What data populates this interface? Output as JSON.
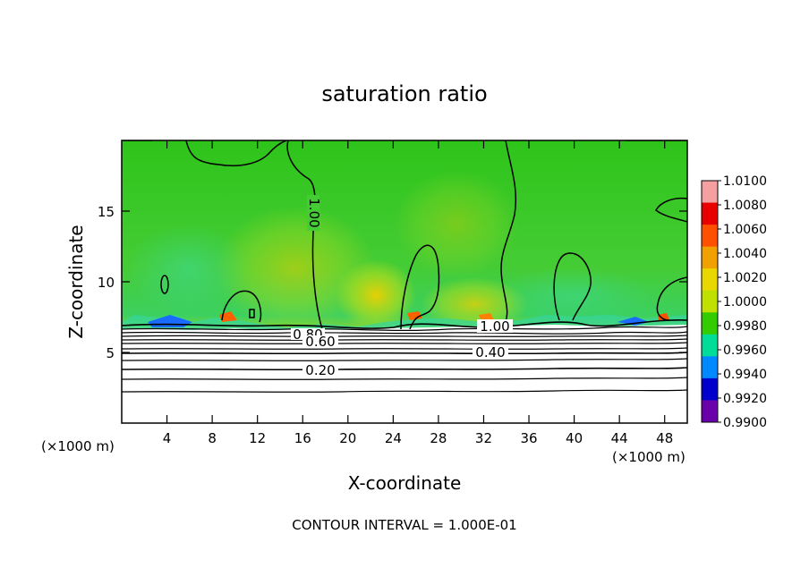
{
  "chart_data": {
    "type": "heatmap",
    "title": "saturation ratio",
    "xlabel": "X-coordinate",
    "ylabel": "Z-coordinate",
    "x_unit_left": "(×1000 m)",
    "x_unit_right": "(×1000 m)",
    "footer": "CONTOUR INTERVAL = 1.000E-01",
    "xlim": [
      0,
      50
    ],
    "ylim": [
      0,
      20
    ],
    "x_ticks": [
      4,
      8,
      12,
      16,
      20,
      24,
      28,
      32,
      36,
      40,
      44,
      48
    ],
    "x_tick_labels": [
      "4",
      "8",
      "12",
      "16",
      "20",
      "24",
      "28",
      "32",
      "36",
      "40",
      "44",
      "48"
    ],
    "y_ticks": [
      5,
      10,
      15
    ],
    "y_tick_labels": [
      "5",
      "10",
      "15"
    ],
    "colorbar": {
      "labels": [
        "1.0100",
        "1.0080",
        "1.0060",
        "1.0040",
        "1.0020",
        "1.0000",
        "0.9980",
        "0.9960",
        "0.9940",
        "0.9920",
        "0.9900"
      ],
      "colors": [
        "#f4a0a0",
        "#e80000",
        "#ff5000",
        "#f0a000",
        "#e8d800",
        "#c0e000",
        "#33cc00",
        "#00dd99",
        "#0088ff",
        "#0000cc",
        "#6a00aa"
      ]
    },
    "contour_labels": [
      {
        "text": "1.00",
        "x": 13.5,
        "z": 14.5,
        "rotate": 90
      },
      {
        "text": "1.00",
        "x": 33.0,
        "z": 6.8
      },
      {
        "text": "0.80",
        "x": 16.0,
        "z": 6.2
      },
      {
        "text": "0.60",
        "x": 17.5,
        "z": 5.8
      },
      {
        "text": "0.40",
        "x": 33.5,
        "z": 5.0
      },
      {
        "text": "0.20",
        "x": 17.5,
        "z": 3.7
      }
    ]
  }
}
